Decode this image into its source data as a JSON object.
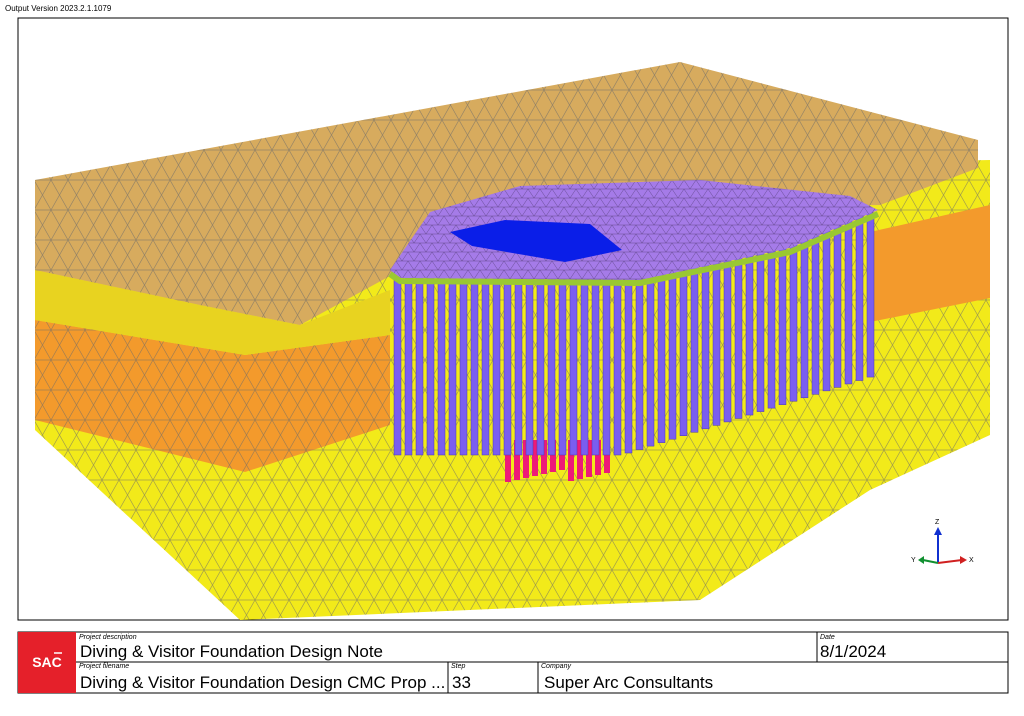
{
  "header": {
    "version": "Output Version 2023.2.1.1079"
  },
  "axes": {
    "z": "Z",
    "y": "Y",
    "x": "X"
  },
  "footer": {
    "logo": "SAC",
    "project_description_label": "Project description",
    "project_description": "Diving & Visitor Foundation Design Note",
    "date_label": "Date",
    "date": "8/1/2024",
    "project_filename_label": "Project filename",
    "project_filename": "Diving & Visitor Foundation Design CMC Prop ...",
    "step_label": "Step",
    "step": "33",
    "company_label": "Company",
    "company": "Super Arc Consultants"
  }
}
